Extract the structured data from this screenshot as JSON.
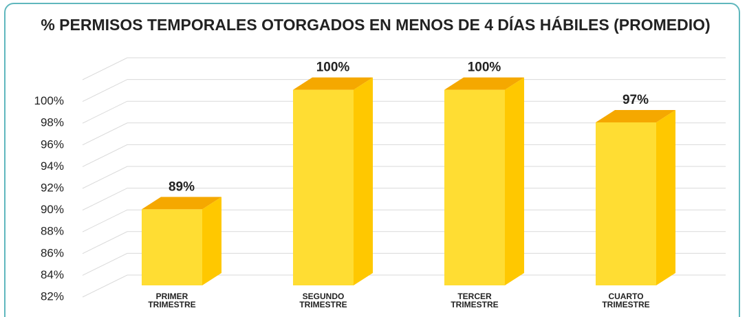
{
  "chart_data": {
    "type": "bar3d",
    "title": "% PERMISOS TEMPORALES OTORGADOS EN MENOS DE 4 DÍAS HÁBILES (PROMEDIO)",
    "categories": [
      "PRIMER TRIMESTRE",
      "SEGUNDO TRIMESTRE",
      "TERCER TRIMESTRE",
      "CUARTO TRIMESTRE"
    ],
    "values": [
      89,
      100,
      100,
      97
    ],
    "value_labels": [
      "89%",
      "100%",
      "100%",
      "97%"
    ],
    "colors": {
      "front": "#FFDD33",
      "side": "#FFC800",
      "top": "#F5A800"
    },
    "ylim": [
      82,
      102
    ],
    "yticks": [
      {
        "value": 82,
        "label": "82%"
      },
      {
        "value": 84,
        "label": "84%"
      },
      {
        "value": 86,
        "label": "86%"
      },
      {
        "value": 88,
        "label": "88%"
      },
      {
        "value": 90,
        "label": "90%"
      },
      {
        "value": 92,
        "label": "92%"
      },
      {
        "value": 94,
        "label": "94%"
      },
      {
        "value": 96,
        "label": "96%"
      },
      {
        "value": 98,
        "label": "98%"
      },
      {
        "value": 100,
        "label": "100%"
      }
    ],
    "grid": true
  }
}
